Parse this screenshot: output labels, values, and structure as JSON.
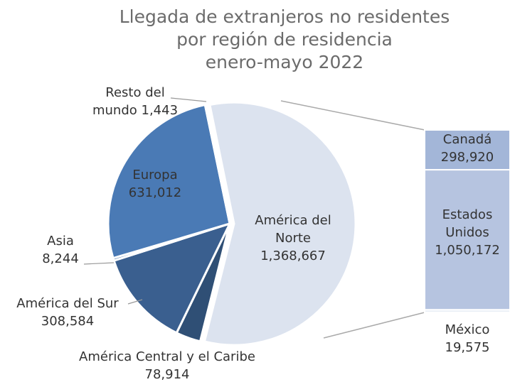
{
  "chart_data": [
    {
      "type": "pie",
      "title": [
        "Llegada de extranjeros no residentes",
        "por región de residencia",
        "enero-mayo 2022"
      ],
      "categories": [
        "América del Norte",
        "América Central y el Caribe",
        "América del Sur",
        "Asia",
        "Europa",
        "Resto del mundo"
      ],
      "values": [
        1368667,
        78914,
        308584,
        8244,
        631012,
        1443
      ],
      "value_labels": [
        "1,368,667",
        "78,914",
        "308,584",
        "8,244",
        "631,012",
        "1,443"
      ],
      "colors": [
        "#dce3ef",
        "#2f4f75",
        "#3a5f8f",
        "#3d6aa3",
        "#4a7ab5",
        "#5b89c2"
      ]
    },
    {
      "type": "bar",
      "categories": [
        "Canadá",
        "Estados Unidos",
        "México"
      ],
      "values": [
        298920,
        1050172,
        19575
      ],
      "value_labels": [
        "298,920",
        "1,050,172",
        "19,575"
      ],
      "colors": [
        "#a3b6d8",
        "#b6c4e0",
        "#e9eef6"
      ]
    }
  ]
}
